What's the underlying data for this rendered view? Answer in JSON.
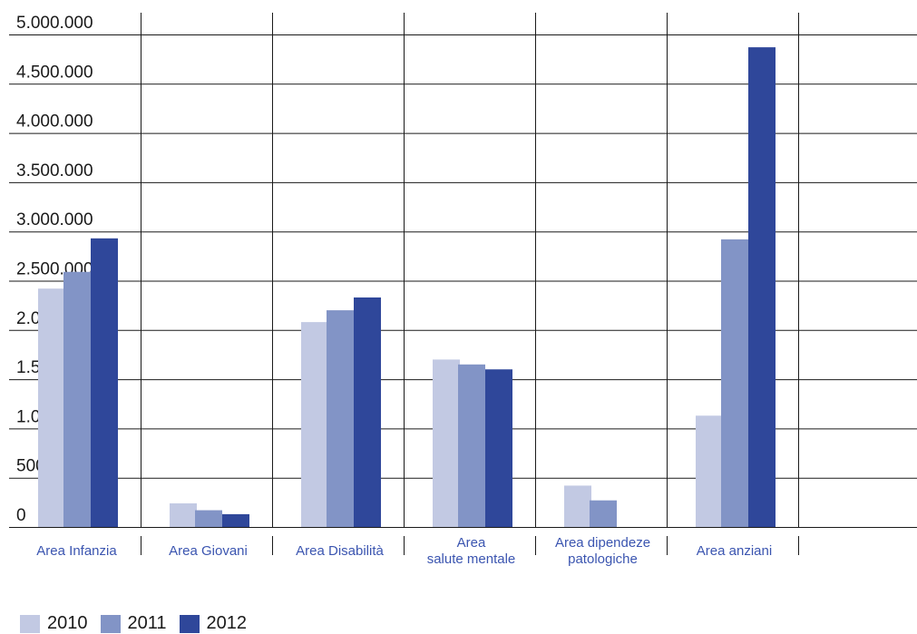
{
  "chart_data": {
    "type": "bar",
    "categories": [
      [
        "Area Infanzia"
      ],
      [
        "Area Giovani"
      ],
      [
        "Area Disabilità"
      ],
      [
        "Area",
        "salute mentale"
      ],
      [
        "Area dipendeze",
        "patologiche"
      ],
      [
        "Area anziani"
      ]
    ],
    "series": [
      {
        "name": "2010",
        "color": "#c2c9e3",
        "values": [
          2420000,
          240000,
          2080000,
          1700000,
          420000,
          1130000
        ]
      },
      {
        "name": "2011",
        "color": "#8294c6",
        "values": [
          2590000,
          170000,
          2200000,
          1650000,
          270000,
          2920000
        ]
      },
      {
        "name": "2012",
        "color": "#2f479a",
        "values": [
          2930000,
          130000,
          2330000,
          1600000,
          0,
          4870000
        ]
      }
    ],
    "y_ticks": [
      "0",
      "500.000",
      "1.000.000",
      "1.500.000",
      "2.000.000",
      "2.500.000",
      "3.000.000",
      "3.500.000",
      "4.000.000",
      "4.500.000",
      "5.000.000"
    ],
    "ylim": [
      0,
      5000000
    ],
    "grid": true,
    "legend": "bottom-left"
  }
}
